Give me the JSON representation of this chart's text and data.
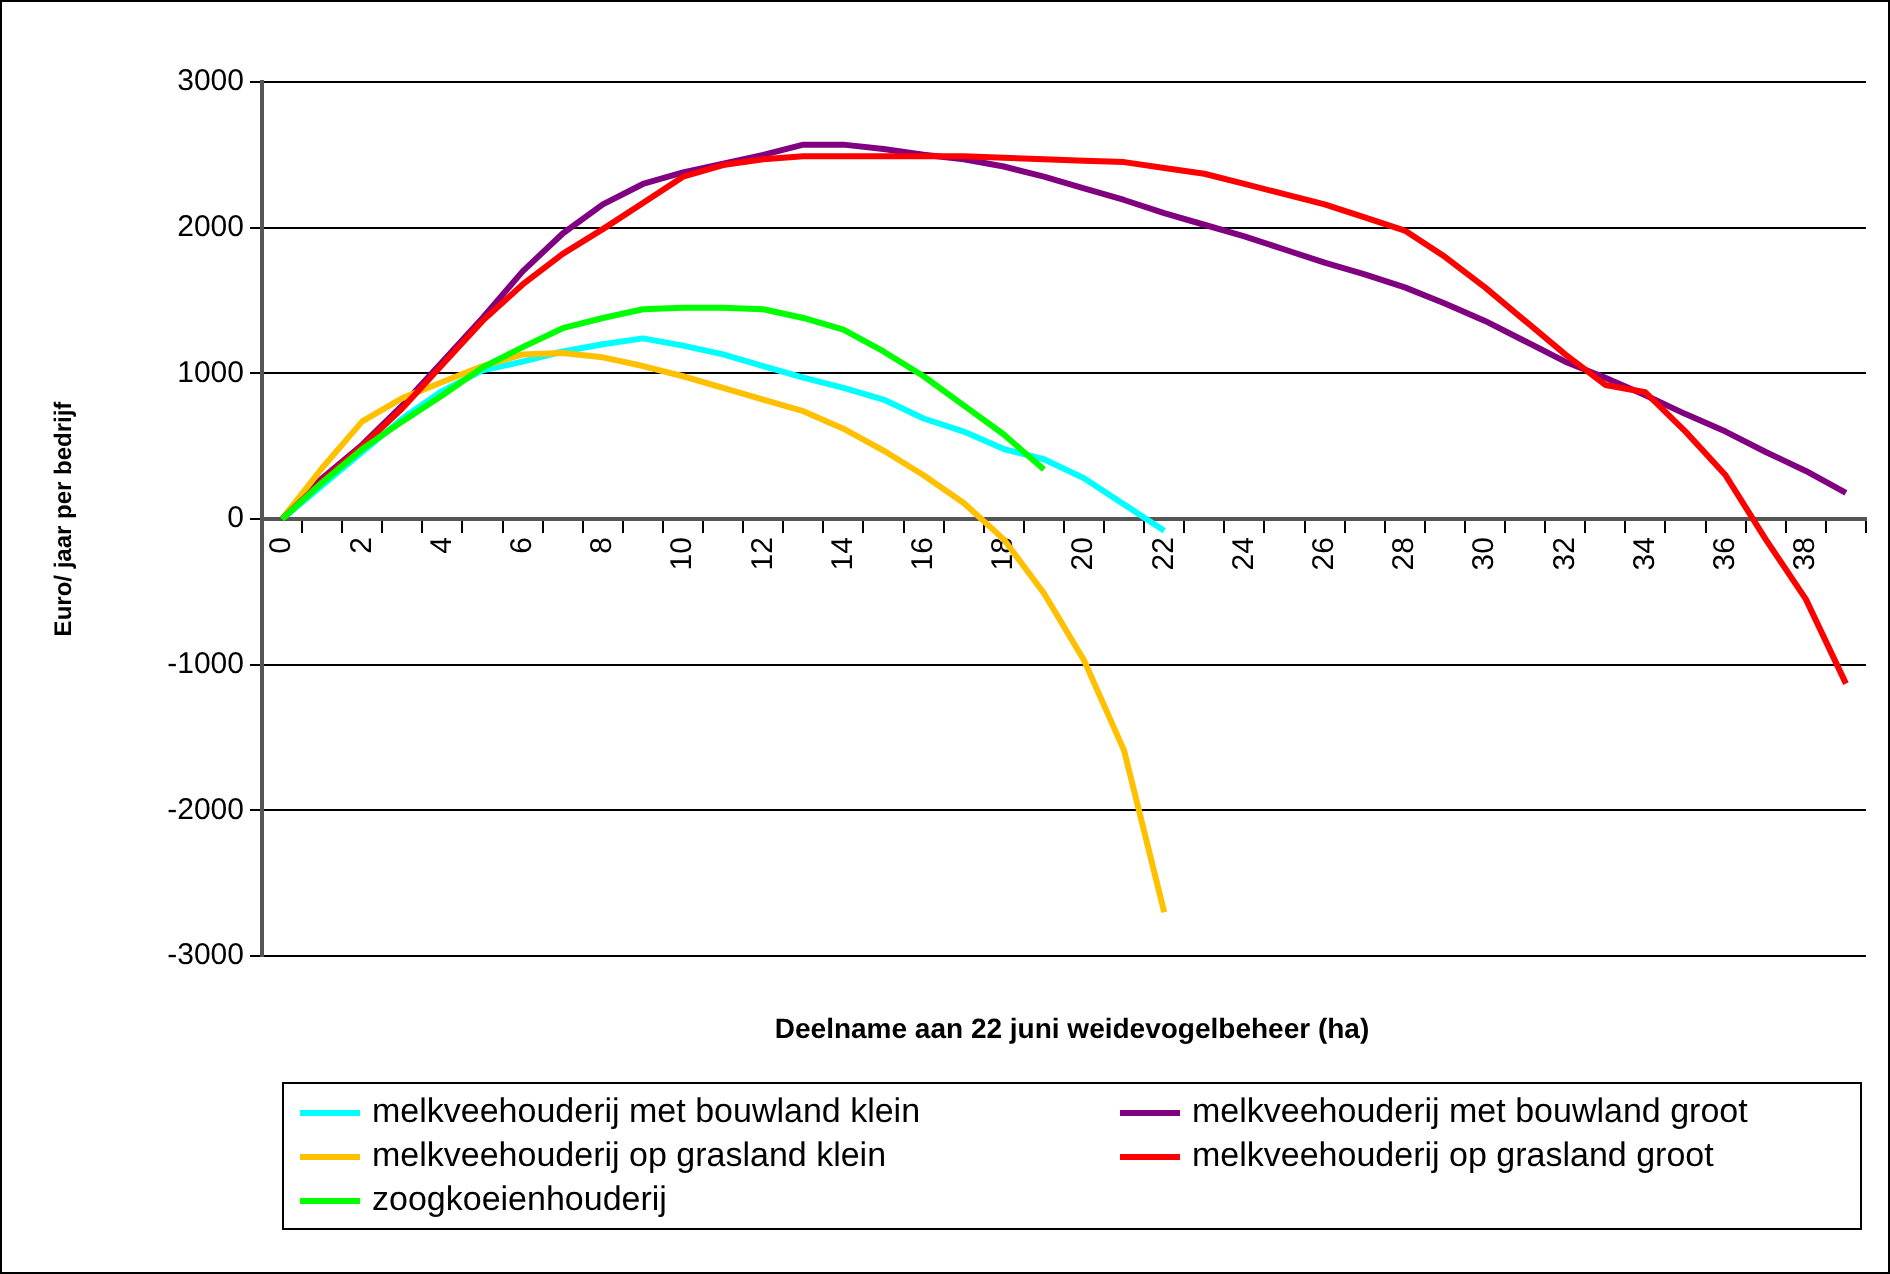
{
  "chart_data": {
    "type": "line",
    "xlabel": "Deelname aan 22 juni weidevogelbeheer (ha)",
    "ylabel": "Euro/ jaar per bedrijf",
    "categories": [
      "0",
      null,
      "2",
      null,
      "4",
      null,
      "6",
      null,
      "8",
      null,
      "10",
      null,
      "12",
      null,
      "14",
      null,
      "16",
      null,
      "18",
      null,
      "20",
      null,
      "22",
      null,
      "24",
      null,
      "26",
      null,
      "28",
      null,
      "30",
      null,
      "32",
      null,
      "34",
      null,
      "36",
      null,
      "38",
      null
    ],
    "ylim": [
      -3000,
      3000
    ],
    "yticks": [
      -3000,
      -2000,
      -1000,
      0,
      1000,
      2000,
      3000
    ],
    "grid": "y",
    "legend": "bottom",
    "marker": "none",
    "line_style": "solid",
    "series": [
      {
        "name": "melkveehouderij met bouwland klein",
        "color": "#00ffff",
        "values": [
          0,
          230,
          460,
          690,
          880,
          1020,
          1080,
          1150,
          1200,
          1240,
          1190,
          1130,
          1050,
          970,
          900,
          820,
          690,
          600,
          480,
          410,
          280,
          100,
          -80,
          null,
          null,
          null,
          null,
          null,
          null,
          null,
          null,
          null,
          null,
          null,
          null,
          null,
          null,
          null,
          null,
          null
        ]
      },
      {
        "name": "melkveehouderij met bouwland groot",
        "color": "#800080",
        "values": [
          0,
          280,
          510,
          780,
          1080,
          1380,
          1700,
          1960,
          2160,
          2300,
          2380,
          2440,
          2500,
          2570,
          2570,
          2540,
          2500,
          2470,
          2420,
          2350,
          2270,
          2190,
          2100,
          2020,
          1940,
          1850,
          1760,
          1680,
          1590,
          1480,
          1360,
          1220,
          1080,
          970,
          850,
          720,
          600,
          460,
          330,
          180
        ]
      },
      {
        "name": "melkveehouderij op grasland klein",
        "color": "#ffc000",
        "values": [
          0,
          350,
          670,
          830,
          940,
          1050,
          1130,
          1140,
          1110,
          1050,
          980,
          900,
          820,
          740,
          620,
          470,
          300,
          110,
          -140,
          -510,
          -970,
          -1590,
          -2700,
          null,
          null,
          null,
          null,
          null,
          null,
          null,
          null,
          null,
          null,
          null,
          null,
          null,
          null,
          null,
          null,
          null
        ]
      },
      {
        "name": "melkveehouderij op grasland groot",
        "color": "#ff0000",
        "values": [
          0,
          260,
          500,
          760,
          1060,
          1360,
          1610,
          1820,
          1990,
          2170,
          2350,
          2430,
          2470,
          2490,
          2490,
          2490,
          2490,
          2490,
          2480,
          2470,
          2460,
          2450,
          2410,
          2370,
          2300,
          2230,
          2160,
          2070,
          1980,
          1800,
          1590,
          1360,
          1130,
          920,
          870,
          600,
          300,
          -140,
          -550,
          -1130
        ]
      },
      {
        "name": "zoogkoeienhouderij",
        "color": "#00ff00",
        "values": [
          0,
          250,
          480,
          670,
          850,
          1040,
          1180,
          1310,
          1380,
          1440,
          1450,
          1450,
          1440,
          1380,
          1300,
          1150,
          980,
          780,
          580,
          340,
          null,
          null,
          null,
          null,
          null,
          null,
          null,
          null,
          null,
          null,
          null,
          null,
          null,
          null,
          null,
          null,
          null,
          null,
          null,
          null
        ]
      }
    ]
  }
}
